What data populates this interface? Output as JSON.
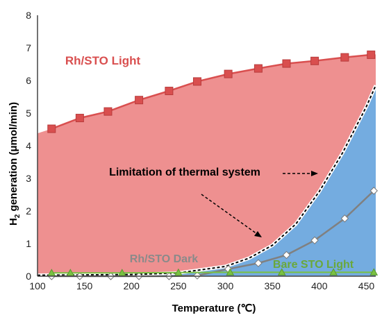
{
  "chart_data": {
    "type": "line",
    "xlabel": "Temperature (℃)",
    "ylabel": "H",
    "ylabel_sub": "2",
    "ylabel_rest": " generation (μmol/min)",
    "xlim": [
      100,
      460
    ],
    "ylim": [
      0,
      8
    ],
    "xticks": [
      100,
      150,
      200,
      250,
      300,
      350,
      400,
      450
    ],
    "yticks": [
      0,
      1,
      2,
      3,
      4,
      5,
      6,
      7,
      8
    ],
    "grid": false,
    "series": [
      {
        "name": "Rh/STO Light",
        "color": "#d94f4f",
        "marker": "square",
        "x": [
          115,
          145,
          175,
          208,
          240,
          270,
          303,
          335,
          365,
          395,
          427,
          455
        ],
        "y": [
          4.52,
          4.85,
          5.05,
          5.4,
          5.68,
          5.97,
          6.2,
          6.37,
          6.52,
          6.6,
          6.71,
          6.79
        ]
      },
      {
        "name": "Rh/STO Dark",
        "color": "#808080",
        "marker": "diamond",
        "x": [
          115,
          145,
          178,
          208,
          240,
          270,
          303,
          335,
          365,
          395,
          427,
          458
        ],
        "y": [
          0.0,
          0.0,
          0.0,
          0.0,
          0.0,
          0.02,
          0.22,
          0.4,
          0.65,
          1.1,
          1.77,
          2.62
        ]
      },
      {
        "name": "Bare STO Light",
        "color": "#7ac142",
        "marker": "triangle",
        "x": [
          115,
          135,
          190,
          250,
          305,
          360,
          415,
          458
        ],
        "y": [
          0.1,
          0.1,
          0.1,
          0.11,
          0.12,
          0.12,
          0.12,
          0.12
        ]
      }
    ],
    "thermal_limit_curve": {
      "x": [
        100,
        200,
        250,
        300,
        325,
        350,
        375,
        400,
        425,
        450,
        460
      ],
      "y": [
        0.03,
        0.05,
        0.1,
        0.3,
        0.55,
        0.95,
        1.6,
        2.6,
        3.8,
        5.2,
        5.85
      ]
    },
    "light_area_color": "#ee9090",
    "thermal_area_color": "#74ace0",
    "annotations": {
      "rh_light": "Rh/STO Light",
      "rh_dark": "Rh/STO Dark",
      "bare_light": "Bare STO Light",
      "limitation": "Limitation of thermal system"
    }
  }
}
